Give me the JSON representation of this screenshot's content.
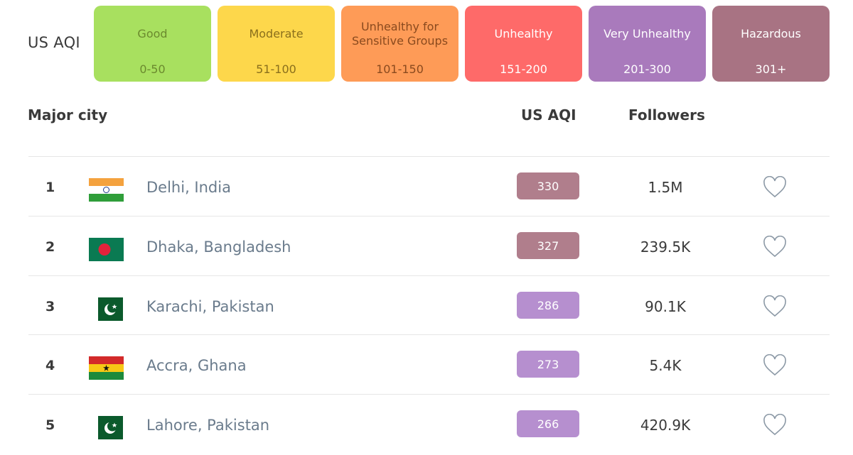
{
  "legend": {
    "title": "US AQI",
    "scale": [
      {
        "label": "Good",
        "range": "0-50",
        "color": "#a8e05f",
        "text_color": "#6b8a2e"
      },
      {
        "label": "Moderate",
        "range": "51-100",
        "color": "#fdd74b",
        "text_color": "#8a6f1c"
      },
      {
        "label": "Unhealthy for Sensitive Groups",
        "range": "101-150",
        "color": "#fe9b57",
        "text_color": "#8a4a1e"
      },
      {
        "label": "Unhealthy",
        "range": "151-200",
        "color": "#fe6a69",
        "text_color": "#ffffff"
      },
      {
        "label": "Very Unhealthy",
        "range": "201-300",
        "color": "#a97abc",
        "text_color": "#ffffff"
      },
      {
        "label": "Hazardous",
        "range": "301+",
        "color": "#a87383",
        "text_color": "#ffffff"
      }
    ]
  },
  "table": {
    "headers": {
      "city": "Major city",
      "aqi": "US AQI",
      "followers": "Followers"
    },
    "rows": [
      {
        "rank": "1",
        "city": "Delhi, India",
        "flag": "india-flag-icon",
        "aqi": "330",
        "aqi_color": "#b07e8c",
        "followers": "1.5M"
      },
      {
        "rank": "2",
        "city": "Dhaka, Bangladesh",
        "flag": "bangladesh-flag-icon",
        "aqi": "327",
        "aqi_color": "#b07e8c",
        "followers": "239.5K"
      },
      {
        "rank": "3",
        "city": "Karachi, Pakistan",
        "flag": "pakistan-flag-icon",
        "aqi": "286",
        "aqi_color": "#b68fcf",
        "followers": "90.1K"
      },
      {
        "rank": "4",
        "city": "Accra, Ghana",
        "flag": "ghana-flag-icon",
        "aqi": "273",
        "aqi_color": "#b68fcf",
        "followers": "5.4K"
      },
      {
        "rank": "5",
        "city": "Lahore, Pakistan",
        "flag": "pakistan-flag-icon",
        "aqi": "266",
        "aqi_color": "#b68fcf",
        "followers": "420.9K"
      }
    ]
  },
  "icons": {
    "follow": "heart-outline-icon"
  }
}
